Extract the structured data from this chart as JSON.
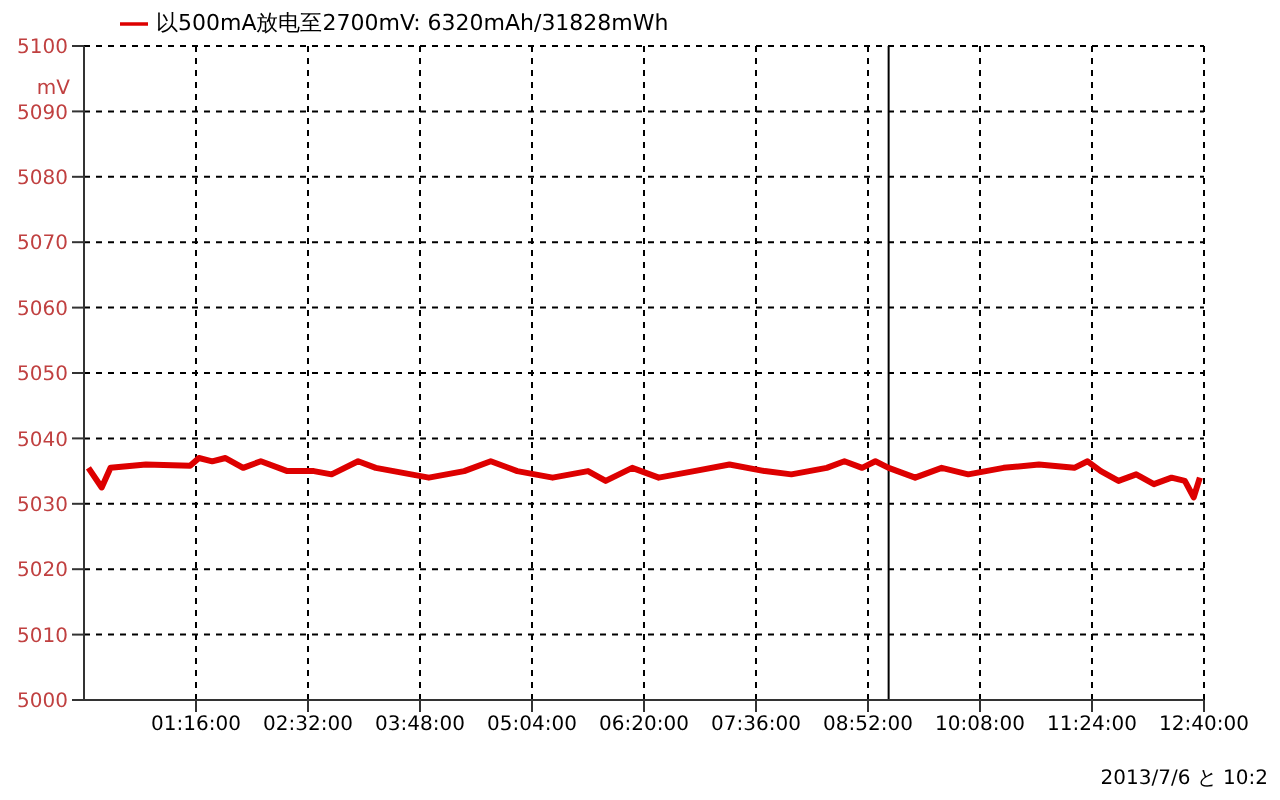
{
  "chart_data": {
    "type": "line",
    "ylabel": "mV",
    "annotations": [
      "2013/7/6 と 10:2"
    ],
    "x": [
      0.05,
      0.2,
      0.3,
      0.7,
      1.2,
      1.3,
      1.45,
      1.6,
      1.8,
      2.0,
      2.3,
      2.6,
      2.8,
      3.1,
      3.3,
      3.5,
      3.9,
      4.3,
      4.6,
      4.9,
      5.3,
      5.7,
      5.9,
      6.2,
      6.5,
      6.9,
      7.3,
      7.7,
      8.0,
      8.4,
      8.6,
      8.8,
      8.95,
      9.1,
      9.4,
      9.7,
      10.0,
      10.4,
      10.8,
      11.2,
      11.35,
      11.5,
      11.7,
      11.9,
      12.1,
      12.3,
      12.45,
      12.55,
      12.62
    ],
    "series": [
      {
        "name": "以500mA放电至2700mV: 6320mAh/31828mWh",
        "color": "#dd0000",
        "values": [
          5035.5,
          5032.5,
          5035.5,
          5036,
          5035.8,
          5037,
          5036.5,
          5037,
          5035.5,
          5036.5,
          5035,
          5035,
          5034.5,
          5036.5,
          5035.5,
          5035,
          5034,
          5035,
          5036.5,
          5035,
          5034,
          5035,
          5033.5,
          5035.5,
          5034,
          5035,
          5036,
          5035,
          5034.5,
          5035.5,
          5036.5,
          5035.5,
          5036.5,
          5035.5,
          5034,
          5035.5,
          5034.5,
          5035.5,
          5036,
          5035.5,
          5036.5,
          5035,
          5033.5,
          5034.5,
          5033,
          5034,
          5033.5,
          5031,
          5034
        ]
      }
    ],
    "xlim": [
      0,
      12.6667
    ],
    "xticks": [
      {
        "value": 1.2667,
        "label": "01:16:00"
      },
      {
        "value": 2.5333,
        "label": "02:32:00"
      },
      {
        "value": 3.8,
        "label": "03:48:00"
      },
      {
        "value": 5.0667,
        "label": "05:04:00"
      },
      {
        "value": 6.3333,
        "label": "06:20:00"
      },
      {
        "value": 7.6,
        "label": "07:36:00"
      },
      {
        "value": 8.8667,
        "label": "08:52:00"
      },
      {
        "value": 10.1333,
        "label": "10:08:00"
      },
      {
        "value": 11.4,
        "label": "11:24:00"
      },
      {
        "value": 12.6667,
        "label": "12:40:00"
      }
    ],
    "ylim": [
      5000,
      5100
    ],
    "yticks": [
      5000,
      5010,
      5020,
      5030,
      5040,
      5050,
      5060,
      5070,
      5080,
      5090,
      5100
    ],
    "ref_lines": [
      {
        "axis": "x",
        "value": 9.1,
        "color": "#000000"
      }
    ],
    "grid": true,
    "legend": "top left",
    "marker": "none",
    "line_style": "solid"
  }
}
